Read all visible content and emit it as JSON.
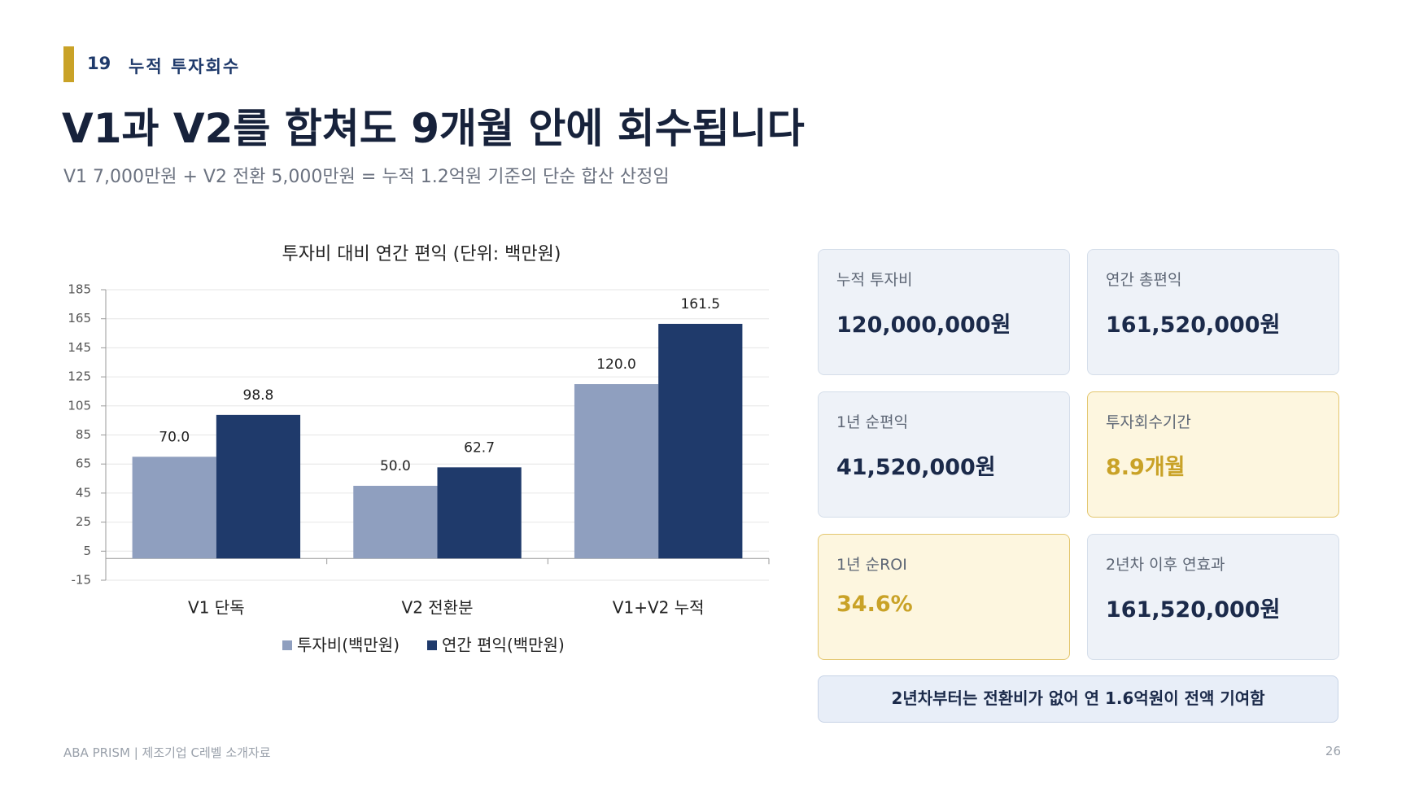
{
  "header": {
    "section_number": "19",
    "section_title": "누적 투자회수",
    "title": "V1과 V2를 합쳐도 9개월 안에 회수됩니다",
    "subtitle": "V1 7,000만원 + V2 전환 5,000만원 = 누적 1.2억원 기준의 단순 합산 산정임"
  },
  "chart_data": {
    "type": "bar",
    "title": "투자비 대비 연간 편익 (단위: 백만원)",
    "categories": [
      "V1 단독",
      "V2 전환분",
      "V1+V2 누적"
    ],
    "series": [
      {
        "name": "투자비(백만원)",
        "color": "#8f9fbf",
        "values": [
          70,
          50,
          120
        ],
        "value_labels": [
          "70.0",
          "50.0",
          "120.0"
        ]
      },
      {
        "name": "연간 편익(백만원)",
        "color": "#1f3a6b",
        "values": [
          98.8,
          62.7,
          161.5
        ]
      }
    ],
    "ylim": [
      -15,
      185
    ],
    "yticks": [
      -15,
      5,
      25,
      45,
      65,
      85,
      105,
      125,
      145,
      165,
      185
    ],
    "grid": true,
    "legend": "bottom"
  },
  "cards": [
    {
      "label": "누적 투자비",
      "value": "120,000,000원",
      "highlight": false
    },
    {
      "label": "연간 총편익",
      "value": "161,520,000원",
      "highlight": false
    },
    {
      "label": "1년 순편익",
      "value": "41,520,000원",
      "highlight": false
    },
    {
      "label": "투자회수기간",
      "value": "8.9개월",
      "highlight": true
    },
    {
      "label": "1년 순ROI",
      "value": "34.6%",
      "highlight": true
    },
    {
      "label": "2년차 이후 연효과",
      "value": "161,520,000원",
      "highlight": false
    }
  ],
  "banner": "2년차부터는 전환비가 없어 연 1.6억원이 전액 기여함",
  "footer": {
    "left": "ABA PRISM | 제조기업 C레벨 소개자료",
    "page": "26"
  }
}
